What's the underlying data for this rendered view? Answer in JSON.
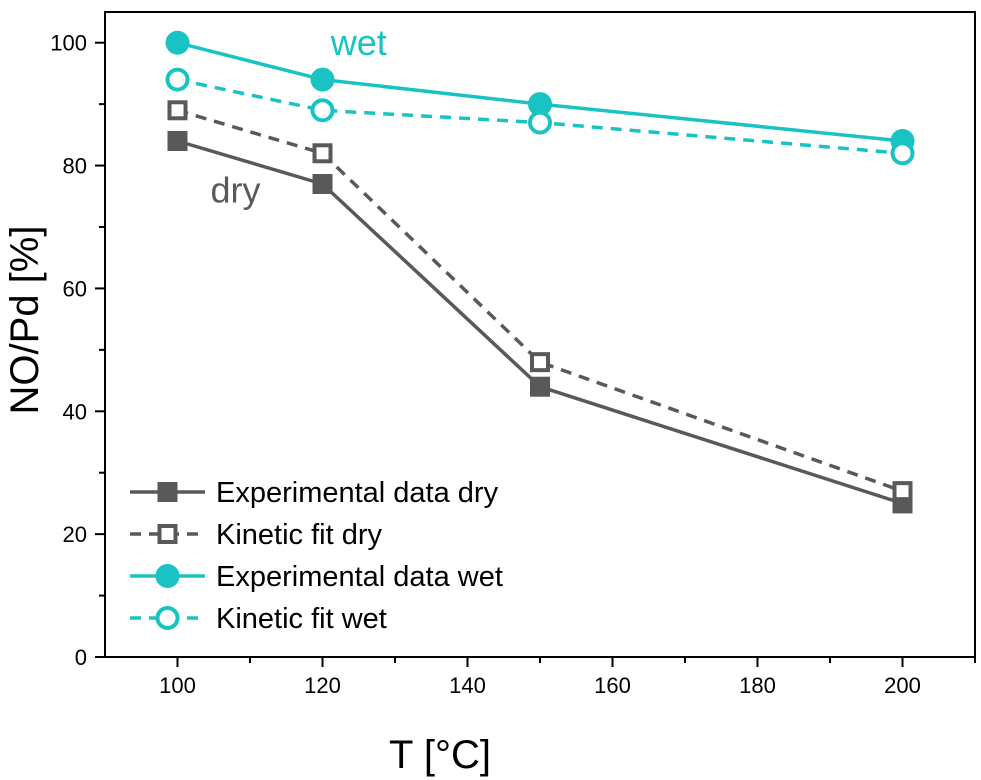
{
  "chart_data": {
    "type": "line",
    "title": "",
    "xlabel": "T [°C]",
    "ylabel": "NO/Pd [%]",
    "xlim": [
      90,
      210
    ],
    "ylim": [
      0,
      105
    ],
    "x_ticks": [
      100,
      120,
      140,
      160,
      180,
      200
    ],
    "y_ticks": [
      0,
      20,
      40,
      60,
      80,
      100
    ],
    "grid": false,
    "legend_position": "bottom-left",
    "x": [
      100,
      120,
      150,
      200
    ],
    "series": [
      {
        "name": "Experimental data dry",
        "values": [
          84,
          77,
          44,
          25
        ],
        "color": "#595959",
        "line": "solid",
        "marker": "filled-square"
      },
      {
        "name": "Kinetic fit dry",
        "values": [
          89,
          82,
          48,
          27
        ],
        "color": "#595959",
        "line": "dashed",
        "marker": "open-square"
      },
      {
        "name": "Experimental data wet",
        "values": [
          100,
          94,
          90,
          84
        ],
        "color": "#1ac3c3",
        "line": "solid",
        "marker": "filled-circle"
      },
      {
        "name": "Kinetic fit wet",
        "values": [
          94,
          89,
          87,
          82
        ],
        "color": "#1ac3c3",
        "line": "dashed",
        "marker": "open-circle"
      }
    ],
    "annotations": [
      {
        "text": "wet",
        "color": "#1ac3c3",
        "x": 125,
        "y": 98
      },
      {
        "text": "dry",
        "color": "#595959",
        "x": 108,
        "y": 74
      }
    ]
  }
}
